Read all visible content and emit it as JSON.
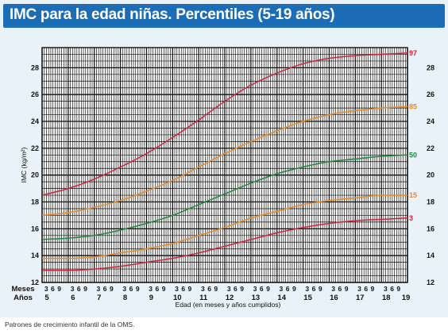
{
  "title": "IMC para la edad niñas. Percentiles (5-19 años)",
  "footer": "Patrones de crecimiento infantil de la OMS.",
  "chart_data": {
    "type": "line",
    "title": "IMC para la edad niñas. Percentiles (5-19 años)",
    "xlabel": "Edad (en meses y años cumplidos)",
    "ylabel": "IMC (kg/m²)",
    "x_row_labels": {
      "months": "Meses",
      "years": "Años"
    },
    "xlim": [
      5,
      19
    ],
    "ylim": [
      12,
      29.5
    ],
    "y_ticks": [
      12,
      14,
      16,
      18,
      20,
      22,
      24,
      26,
      28
    ],
    "x_year_ticks": [
      5,
      6,
      7,
      8,
      9,
      10,
      11,
      12,
      13,
      14,
      15,
      16,
      17,
      18,
      19
    ],
    "month_ticks": [
      "3",
      "6",
      "9"
    ],
    "grid": true,
    "legend": "curve labels at right end",
    "x": [
      5,
      6,
      7,
      8,
      9,
      10,
      11,
      12,
      13,
      14,
      15,
      16,
      17,
      18,
      19
    ],
    "series": [
      {
        "name": "97",
        "color": "#d1243c",
        "values": [
          18.5,
          19.0,
          19.7,
          20.6,
          21.6,
          22.8,
          24.1,
          25.5,
          26.7,
          27.6,
          28.3,
          28.7,
          28.9,
          29.0,
          29.1
        ]
      },
      {
        "name": "85",
        "color": "#e8882c",
        "values": [
          17.0,
          17.2,
          17.6,
          18.1,
          18.8,
          19.6,
          20.6,
          21.6,
          22.5,
          23.3,
          24.0,
          24.5,
          24.8,
          25.0,
          25.1
        ]
      },
      {
        "name": "50",
        "color": "#1c8a3c",
        "values": [
          15.2,
          15.3,
          15.5,
          15.9,
          16.4,
          17.0,
          17.8,
          18.6,
          19.4,
          20.1,
          20.6,
          21.0,
          21.2,
          21.4,
          21.5
        ]
      },
      {
        "name": "15",
        "color": "#e8882c",
        "values": [
          13.8,
          13.8,
          13.9,
          14.2,
          14.5,
          14.9,
          15.5,
          16.1,
          16.8,
          17.3,
          17.8,
          18.1,
          18.3,
          18.5,
          18.5
        ]
      },
      {
        "name": "3",
        "color": "#d1243c",
        "values": [
          12.9,
          12.9,
          13.0,
          13.2,
          13.5,
          13.8,
          14.2,
          14.7,
          15.2,
          15.7,
          16.1,
          16.4,
          16.6,
          16.7,
          16.8
        ]
      }
    ]
  }
}
